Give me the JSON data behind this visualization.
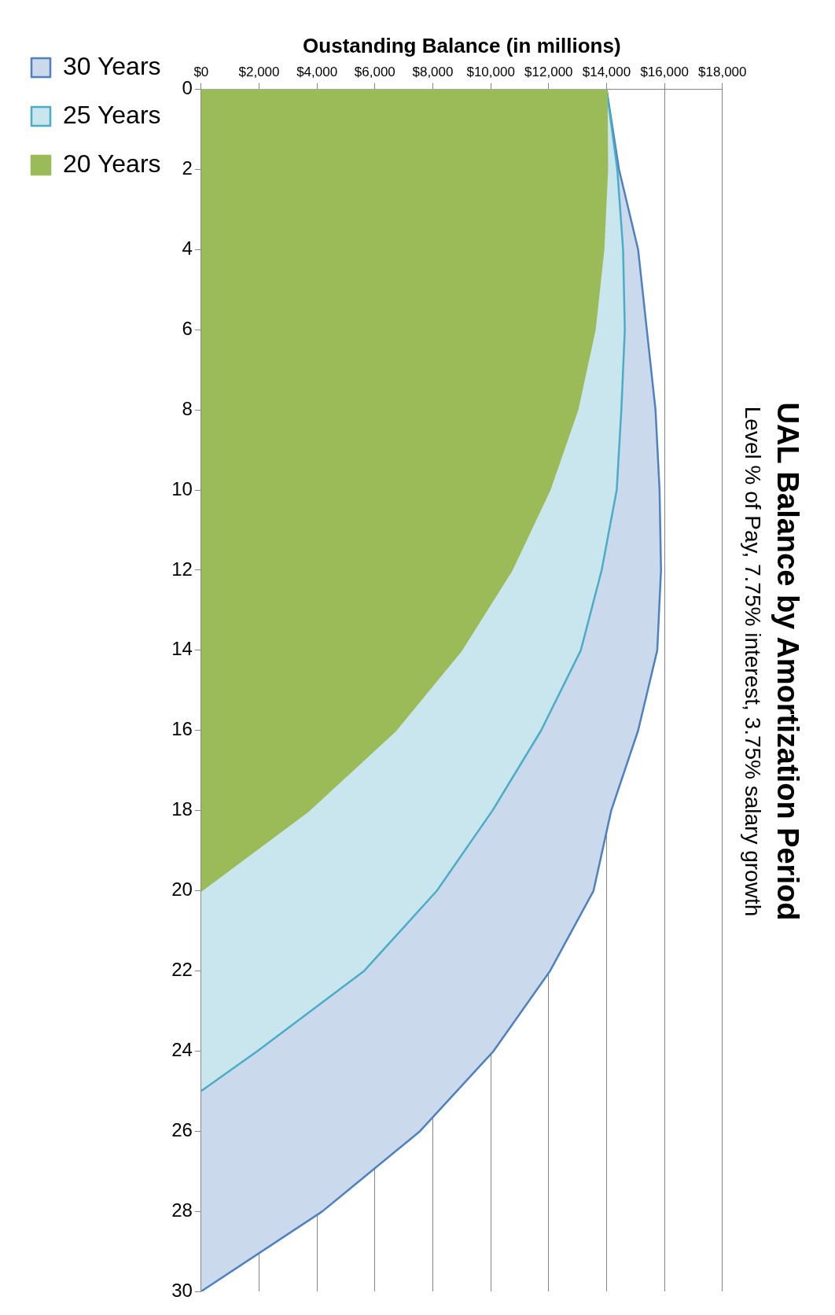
{
  "chart_data": {
    "type": "area",
    "title": "UAL Balance by Amortization Period",
    "subtitle": "Level % of Pay, 7.75% interest, 3.75% salary growth",
    "ylabel": "Oustanding Balance (in millions)",
    "series": [
      {
        "name": "30 Years",
        "color": "#4f81bd",
        "x": [
          0,
          2,
          4,
          6,
          8,
          10,
          12,
          14,
          16,
          18,
          20,
          22,
          24,
          26,
          28,
          30
        ],
        "values": [
          14000,
          14430,
          15090,
          15390,
          15690,
          15830,
          15880,
          15750,
          15090,
          14160,
          13550,
          12050,
          10100,
          7560,
          4190,
          0
        ]
      },
      {
        "name": "25 Years",
        "color": "#4bacc6",
        "x": [
          0,
          2,
          4,
          6,
          8,
          10,
          12,
          14,
          16,
          18,
          20,
          22,
          24,
          25
        ],
        "values": [
          14000,
          14370,
          14570,
          14630,
          14510,
          14350,
          13830,
          13110,
          11740,
          10060,
          8140,
          5630,
          1950,
          0
        ]
      },
      {
        "name": "20 Years",
        "color": "#9bbb59",
        "x": [
          0,
          2,
          4,
          6,
          8,
          10,
          12,
          14,
          16,
          18,
          20
        ],
        "values": [
          14000,
          14020,
          13890,
          13590,
          12990,
          12030,
          10720,
          8980,
          6710,
          3710,
          0
        ]
      }
    ],
    "orientation": "horizontal",
    "ylim": [
      30,
      0
    ],
    "yticks": [
      0,
      2,
      4,
      6,
      8,
      10,
      12,
      14,
      16,
      18,
      20,
      22,
      24,
      26,
      28,
      30
    ],
    "xlim": [
      0,
      18000
    ],
    "xticks": [
      {
        "value": 0,
        "label": "$0"
      },
      {
        "value": 2000,
        "label": "$2,000"
      },
      {
        "value": 4000,
        "label": "$4,000"
      },
      {
        "value": 6000,
        "label": "$6,000"
      },
      {
        "value": 8000,
        "label": "$8,000"
      },
      {
        "value": 10000,
        "label": "$10,000"
      },
      {
        "value": 12000,
        "label": "$12,000"
      },
      {
        "value": 14000,
        "label": "$14,000"
      },
      {
        "value": 16000,
        "label": "$16,000"
      },
      {
        "value": 18000,
        "label": "$18,000"
      }
    ],
    "grid": "x",
    "legend": "left",
    "marker": "none"
  }
}
